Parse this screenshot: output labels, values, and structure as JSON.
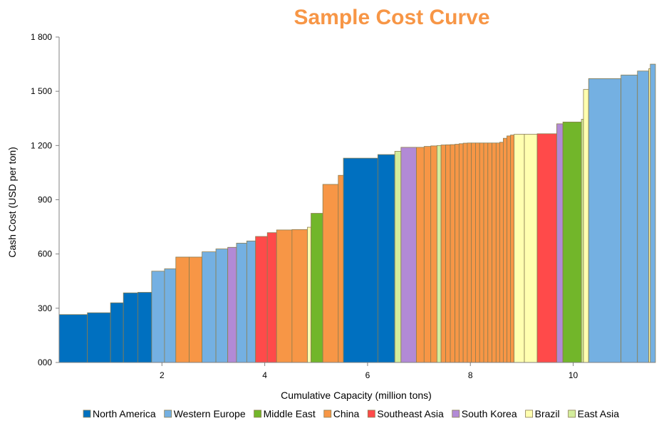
{
  "chart_data": {
    "type": "bar",
    "subtype": "cost-curve (variable-width bars)",
    "title": "Sample Cost Curve",
    "title_color": "#F79646",
    "xlabel": "Cumulative Capacity (million tons)",
    "ylabel": "Cash Cost (USD per ton)",
    "xlim": [
      0,
      11.6
    ],
    "ylim": [
      0,
      1800
    ],
    "xticks": [
      2,
      4,
      6,
      8,
      10
    ],
    "xtick_labels": [
      "2",
      "4",
      "6",
      "8",
      "10"
    ],
    "yticks": [
      0,
      300,
      600,
      900,
      1200,
      1500,
      1800
    ],
    "ytick_labels": [
      "000",
      "300",
      "600",
      "900",
      "1 200",
      "1 500",
      "1 800"
    ],
    "grid": false,
    "legend_position": "bottom",
    "legend": [
      {
        "name": "North America",
        "color": "#0070C0"
      },
      {
        "name": "Western Europe",
        "color": "#74B0E2"
      },
      {
        "name": "Middle East",
        "color": "#72B62A"
      },
      {
        "name": "China",
        "color": "#F79646"
      },
      {
        "name": "Southeast Asia",
        "color": "#FF4A4A"
      },
      {
        "name": "South Korea",
        "color": "#B28AD6"
      },
      {
        "name": "Brazil",
        "color": "#FFFFB0"
      },
      {
        "name": "East Asia",
        "color": "#D3ED9C"
      }
    ],
    "bars": [
      {
        "start": 0.0,
        "end": 0.55,
        "value": 265,
        "region": "North America"
      },
      {
        "start": 0.55,
        "end": 1.0,
        "value": 275,
        "region": "North America"
      },
      {
        "start": 1.0,
        "end": 1.25,
        "value": 330,
        "region": "North America"
      },
      {
        "start": 1.25,
        "end": 1.53,
        "value": 385,
        "region": "North America"
      },
      {
        "start": 1.53,
        "end": 1.8,
        "value": 388,
        "region": "North America"
      },
      {
        "start": 1.8,
        "end": 2.05,
        "value": 505,
        "region": "Western Europe"
      },
      {
        "start": 2.05,
        "end": 2.27,
        "value": 518,
        "region": "Western Europe"
      },
      {
        "start": 2.27,
        "end": 2.53,
        "value": 583,
        "region": "China"
      },
      {
        "start": 2.53,
        "end": 2.78,
        "value": 583,
        "region": "China"
      },
      {
        "start": 2.78,
        "end": 3.05,
        "value": 612,
        "region": "Western Europe"
      },
      {
        "start": 3.05,
        "end": 3.28,
        "value": 628,
        "region": "Western Europe"
      },
      {
        "start": 3.28,
        "end": 3.45,
        "value": 637,
        "region": "South Korea"
      },
      {
        "start": 3.45,
        "end": 3.65,
        "value": 660,
        "region": "Western Europe"
      },
      {
        "start": 3.65,
        "end": 3.82,
        "value": 672,
        "region": "Western Europe"
      },
      {
        "start": 3.82,
        "end": 4.05,
        "value": 697,
        "region": "Southeast Asia"
      },
      {
        "start": 4.05,
        "end": 4.23,
        "value": 718,
        "region": "Southeast Asia"
      },
      {
        "start": 4.23,
        "end": 4.53,
        "value": 733,
        "region": "China"
      },
      {
        "start": 4.53,
        "end": 4.83,
        "value": 735,
        "region": "China"
      },
      {
        "start": 4.83,
        "end": 4.9,
        "value": 748,
        "region": "Brazil"
      },
      {
        "start": 4.9,
        "end": 5.13,
        "value": 825,
        "region": "Middle East"
      },
      {
        "start": 5.13,
        "end": 5.43,
        "value": 985,
        "region": "China"
      },
      {
        "start": 5.43,
        "end": 5.53,
        "value": 1035,
        "region": "China"
      },
      {
        "start": 5.53,
        "end": 6.2,
        "value": 1130,
        "region": "North America"
      },
      {
        "start": 6.2,
        "end": 6.53,
        "value": 1150,
        "region": "North America"
      },
      {
        "start": 6.53,
        "end": 6.65,
        "value": 1168,
        "region": "East Asia"
      },
      {
        "start": 6.65,
        "end": 6.95,
        "value": 1190,
        "region": "South Korea"
      },
      {
        "start": 6.95,
        "end": 7.1,
        "value": 1190,
        "region": "China"
      },
      {
        "start": 7.1,
        "end": 7.23,
        "value": 1195,
        "region": "China"
      },
      {
        "start": 7.23,
        "end": 7.35,
        "value": 1198,
        "region": "China"
      },
      {
        "start": 7.35,
        "end": 7.43,
        "value": 1200,
        "region": "East Asia"
      },
      {
        "start": 7.43,
        "end": 7.52,
        "value": 1203,
        "region": "China"
      },
      {
        "start": 7.52,
        "end": 7.61,
        "value": 1204,
        "region": "China"
      },
      {
        "start": 7.61,
        "end": 7.7,
        "value": 1205,
        "region": "China"
      },
      {
        "start": 7.7,
        "end": 7.78,
        "value": 1207,
        "region": "China"
      },
      {
        "start": 7.78,
        "end": 7.86,
        "value": 1210,
        "region": "China"
      },
      {
        "start": 7.86,
        "end": 7.94,
        "value": 1213,
        "region": "China"
      },
      {
        "start": 7.94,
        "end": 8.02,
        "value": 1214,
        "region": "China"
      },
      {
        "start": 8.02,
        "end": 8.1,
        "value": 1214,
        "region": "China"
      },
      {
        "start": 8.1,
        "end": 8.18,
        "value": 1214,
        "region": "China"
      },
      {
        "start": 8.18,
        "end": 8.26,
        "value": 1214,
        "region": "China"
      },
      {
        "start": 8.26,
        "end": 8.34,
        "value": 1214,
        "region": "China"
      },
      {
        "start": 8.34,
        "end": 8.42,
        "value": 1214,
        "region": "China"
      },
      {
        "start": 8.42,
        "end": 8.5,
        "value": 1214,
        "region": "China"
      },
      {
        "start": 8.5,
        "end": 8.57,
        "value": 1214,
        "region": "China"
      },
      {
        "start": 8.57,
        "end": 8.64,
        "value": 1218,
        "region": "China"
      },
      {
        "start": 8.64,
        "end": 8.71,
        "value": 1240,
        "region": "China"
      },
      {
        "start": 8.71,
        "end": 8.78,
        "value": 1253,
        "region": "China"
      },
      {
        "start": 8.78,
        "end": 8.85,
        "value": 1258,
        "region": "China"
      },
      {
        "start": 8.85,
        "end": 9.05,
        "value": 1262,
        "region": "Brazil"
      },
      {
        "start": 9.05,
        "end": 9.3,
        "value": 1262,
        "region": "Brazil"
      },
      {
        "start": 9.3,
        "end": 9.68,
        "value": 1265,
        "region": "Southeast Asia"
      },
      {
        "start": 9.68,
        "end": 9.8,
        "value": 1320,
        "region": "South Korea"
      },
      {
        "start": 9.8,
        "end": 10.16,
        "value": 1330,
        "region": "Middle East"
      },
      {
        "start": 10.16,
        "end": 10.2,
        "value": 1345,
        "region": "East Asia"
      },
      {
        "start": 10.2,
        "end": 10.3,
        "value": 1510,
        "region": "Brazil"
      },
      {
        "start": 10.3,
        "end": 10.93,
        "value": 1570,
        "region": "Western Europe"
      },
      {
        "start": 10.93,
        "end": 11.25,
        "value": 1590,
        "region": "Western Europe"
      },
      {
        "start": 11.25,
        "end": 11.47,
        "value": 1612,
        "region": "Western Europe"
      },
      {
        "start": 11.47,
        "end": 11.5,
        "value": 1625,
        "region": "Brazil"
      },
      {
        "start": 11.5,
        "end": 11.6,
        "value": 1650,
        "region": "Western Europe"
      }
    ]
  }
}
